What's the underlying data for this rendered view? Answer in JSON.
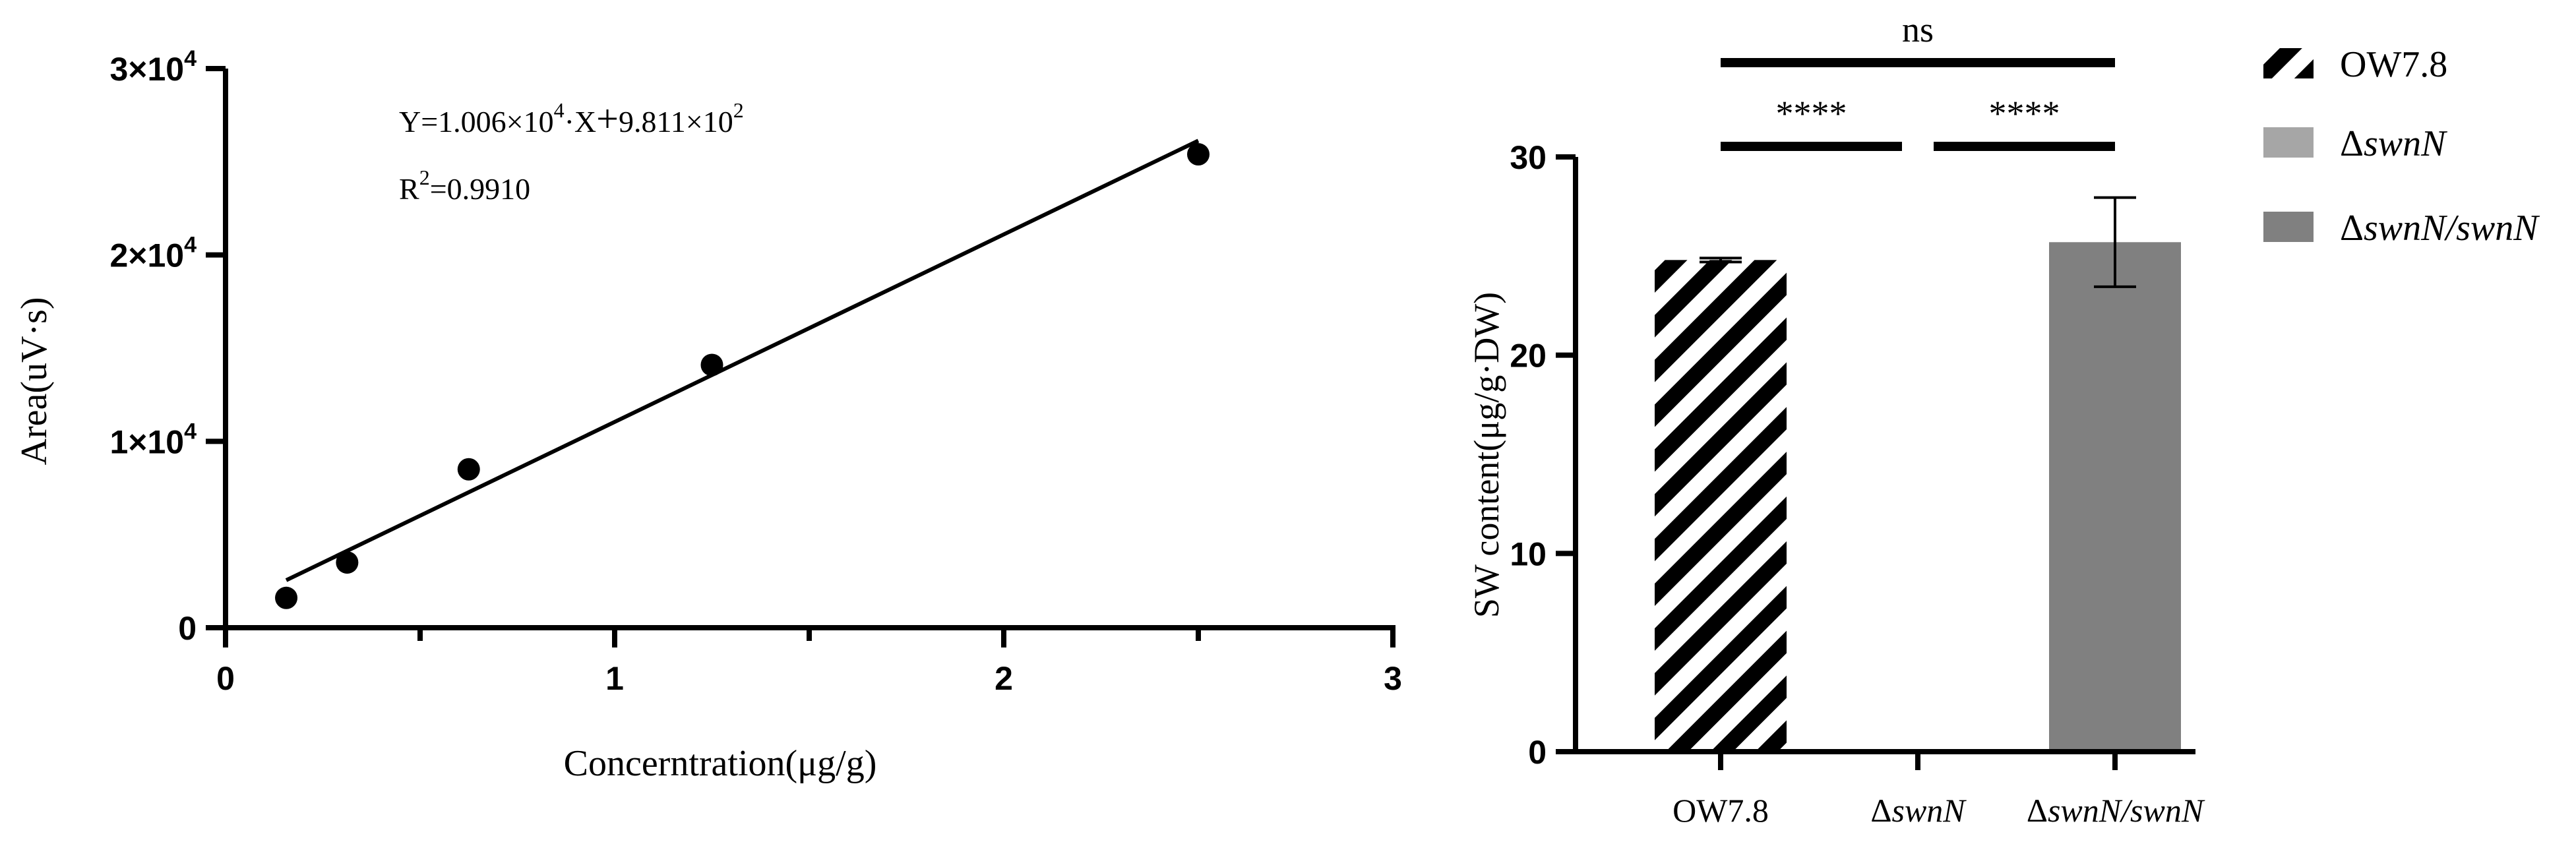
{
  "chart_data": [
    {
      "type": "scatter",
      "xlabel": "Concerntration(μg/g)",
      "ylabel": "Area(uV·s)",
      "xlim": [
        0,
        3
      ],
      "ylim": [
        0,
        30000
      ],
      "x_ticks": [
        {
          "value": 0,
          "label": "0"
        },
        {
          "value": 1,
          "label": "1"
        },
        {
          "value": 2,
          "label": "2"
        },
        {
          "value": 3,
          "label": "3"
        }
      ],
      "x_minor_ticks": [
        0.5,
        1.5,
        2.5
      ],
      "y_ticks": [
        {
          "value": 0,
          "label": "0",
          "sup": ""
        },
        {
          "value": 10000,
          "label": "1×10",
          "sup": "4"
        },
        {
          "value": 20000,
          "label": "2×10",
          "sup": "4"
        },
        {
          "value": 30000,
          "label": "3×10",
          "sup": "4"
        }
      ],
      "points": [
        {
          "x": 0.156,
          "y": 1600
        },
        {
          "x": 0.3125,
          "y": 3500
        },
        {
          "x": 0.625,
          "y": 8500
        },
        {
          "x": 1.25,
          "y": 14100
        },
        {
          "x": 2.5,
          "y": 25400
        }
      ],
      "fit": {
        "slope": 10060,
        "intercept": 981.1,
        "x_range": [
          0.156,
          2.5
        ]
      },
      "equation": {
        "prefix": "Y=1.006×10",
        "exp1": "4",
        "mid": "·X",
        "plus": "+",
        "rest": "9.811×10",
        "exp2": "2"
      },
      "r2": {
        "prefix": "R",
        "exp": "2",
        "rest": "=0.9910"
      },
      "grid": false
    },
    {
      "type": "bar",
      "ylabel": "SW content(μg/g·DW)",
      "ylim": [
        0,
        30
      ],
      "y_ticks": [
        {
          "value": 0,
          "label": "0"
        },
        {
          "value": 10,
          "label": "10"
        },
        {
          "value": 20,
          "label": "20"
        },
        {
          "value": 30,
          "label": "30"
        }
      ],
      "categories": [
        "OW7.8",
        "ΔswnN",
        "ΔswnN/swnN"
      ],
      "category_labels": [
        {
          "plain": "OW7.8",
          "italic": ""
        },
        {
          "plain": "Δ",
          "italic": "swnN"
        },
        {
          "plain": "Δ",
          "italic": "swnN/swnN"
        }
      ],
      "values": [
        24.8,
        0,
        25.7
      ],
      "errors": [
        0.1,
        0,
        2.25
      ],
      "colors": [
        "#000000",
        "#a6a6a6",
        "#808080"
      ],
      "patterns": [
        "diagonal-stripes",
        "solid",
        "solid"
      ],
      "legend": {
        "position": "right",
        "entries": [
          {
            "plain": "OW7.8",
            "italic": "",
            "color": "#000000",
            "pattern": "diagonal-stripes"
          },
          {
            "plain": "Δ",
            "italic": "swnN",
            "color": "#a6a6a6",
            "pattern": "solid"
          },
          {
            "plain": "Δ",
            "italic": "swnN/swnN",
            "color": "#808080",
            "pattern": "solid"
          }
        ]
      },
      "significance": [
        {
          "from": 0,
          "to": 2,
          "label": "ns"
        },
        {
          "from": 0,
          "to": 1,
          "label": "****"
        },
        {
          "from": 1,
          "to": 2,
          "label": "****"
        }
      ],
      "grid": false
    }
  ]
}
